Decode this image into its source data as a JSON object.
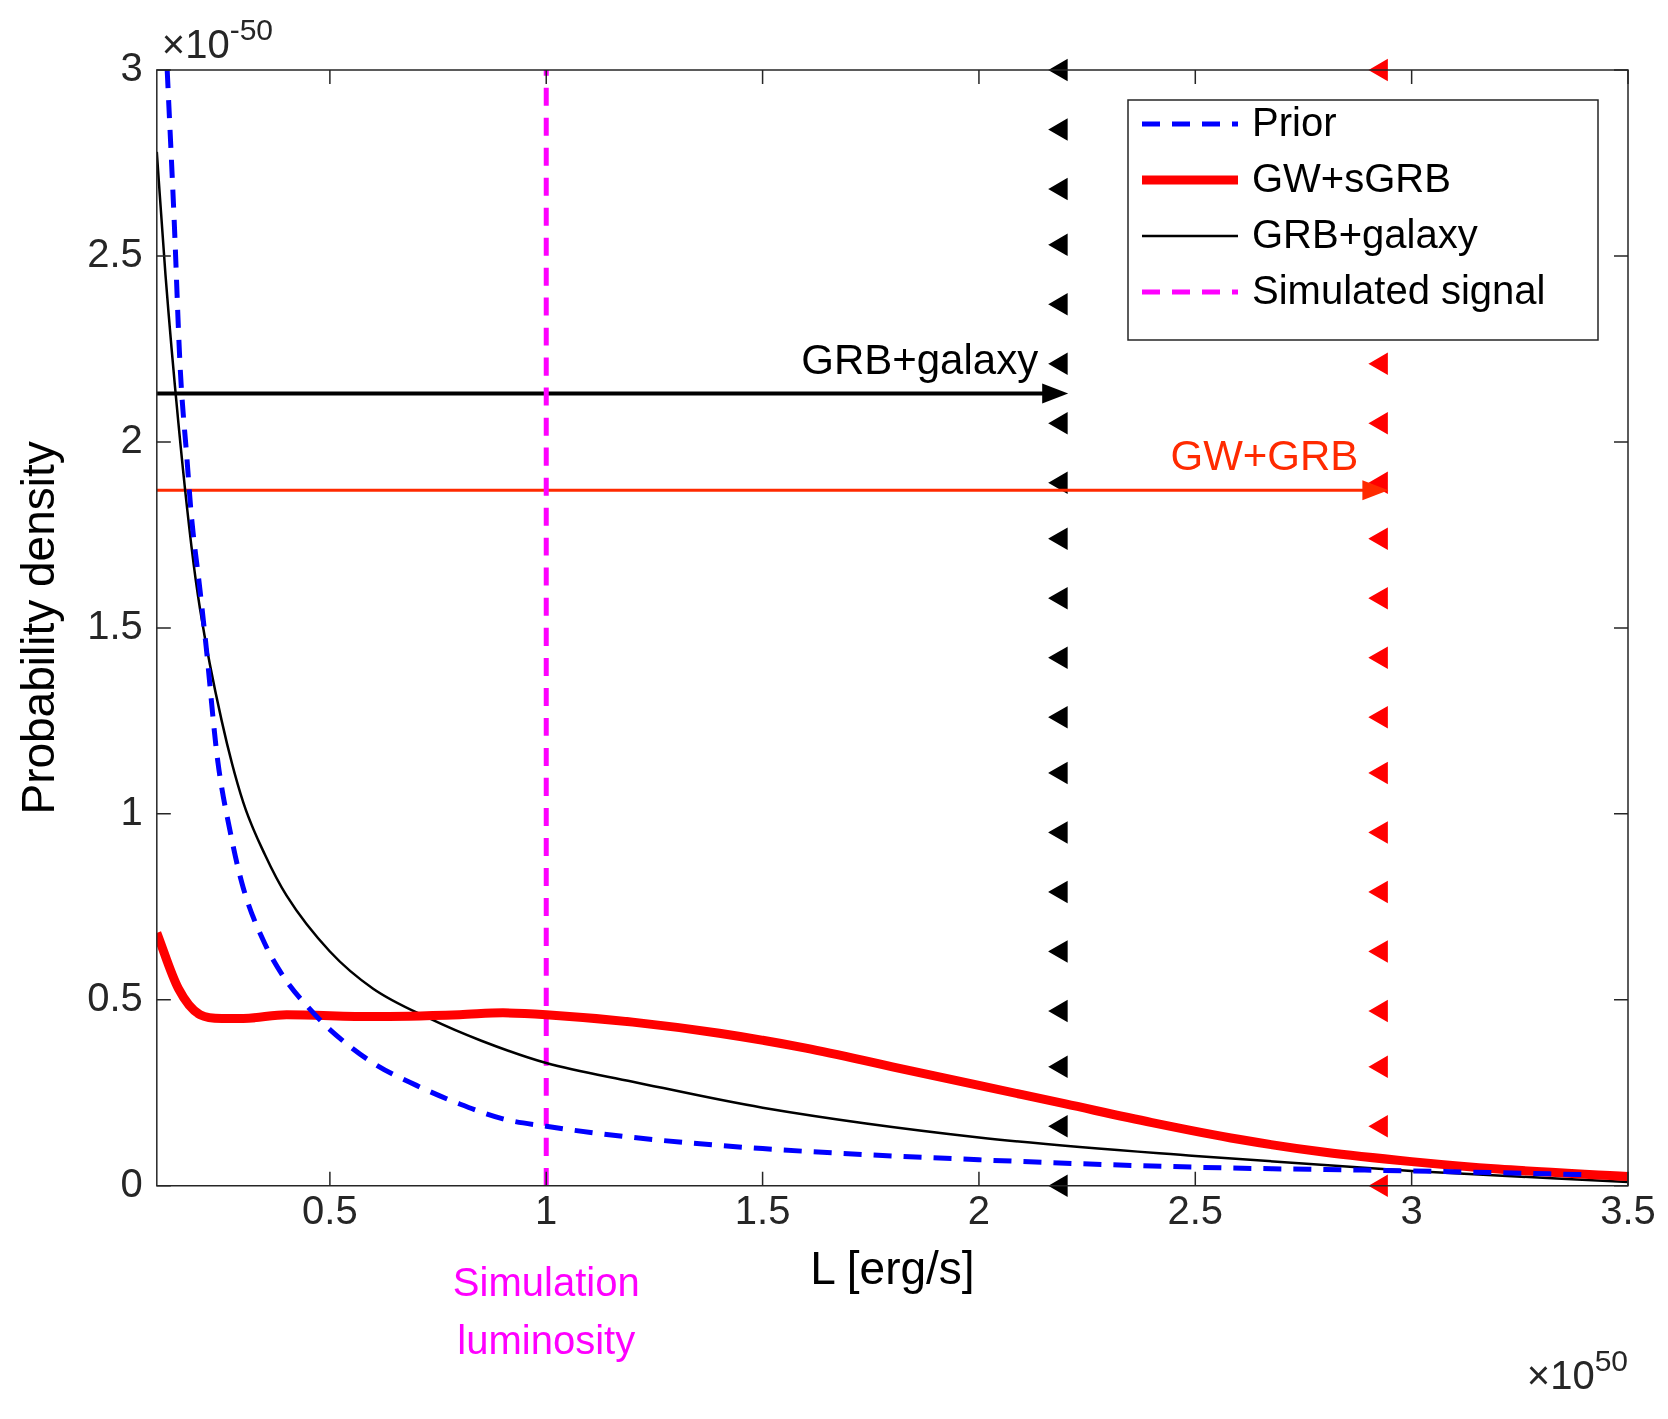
{
  "chart_data": {
    "type": "line",
    "xlabel": "L [erg/s]",
    "ylabel": "Probability density",
    "xlim": [
      0.1,
      3.5
    ],
    "xticks": [
      0.5,
      1,
      1.5,
      2,
      2.5,
      3,
      3.5
    ],
    "ylim": [
      0,
      3
    ],
    "yticks": [
      0,
      0.5,
      1,
      1.5,
      2,
      2.5,
      3
    ],
    "grid": false,
    "legend": "top right",
    "series": [
      {
        "name": "Prior",
        "color": "#0000ff",
        "line_style": "dashed",
        "x": [
          0.124,
          0.14,
          0.154,
          0.17,
          0.18,
          0.2,
          0.214,
          0.24,
          0.27,
          0.3,
          0.35,
          0.4,
          0.45,
          0.5,
          0.6,
          0.7,
          0.8,
          0.9,
          1,
          1.2,
          1.5,
          2,
          2.5,
          3,
          3.4
        ],
        "values": [
          3,
          2.6,
          2.2,
          1.95,
          1.8,
          1.6,
          1.45,
          1.15,
          0.95,
          0.8,
          0.65,
          0.55,
          0.48,
          0.42,
          0.33,
          0.27,
          0.22,
          0.18,
          0.16,
          0.13,
          0.1,
          0.07,
          0.05,
          0.04,
          0.03
        ]
      },
      {
        "name": "GW+sGRB",
        "color": "#ff0000",
        "line_style": "solid",
        "x": [
          0.1,
          0.15,
          0.2,
          0.25,
          0.3,
          0.4,
          0.6,
          0.8,
          0.9,
          1,
          1.2,
          1.4,
          1.6,
          1.8,
          2,
          2.2,
          2.4,
          2.6,
          2.8,
          3,
          3.2,
          3.5
        ],
        "values": [
          0.68,
          0.53,
          0.46,
          0.45,
          0.45,
          0.46,
          0.455,
          0.46,
          0.465,
          0.46,
          0.44,
          0.41,
          0.37,
          0.32,
          0.27,
          0.22,
          0.17,
          0.125,
          0.09,
          0.065,
          0.045,
          0.025
        ]
      },
      {
        "name": "GRB+galaxy",
        "color": "#000000",
        "line_style": "solid",
        "x": [
          0.1,
          0.12,
          0.15,
          0.18,
          0.2,
          0.25,
          0.3,
          0.35,
          0.4,
          0.5,
          0.6,
          0.73,
          0.85,
          1,
          1.2,
          1.5,
          2,
          2.5,
          3,
          3.5
        ],
        "values": [
          2.78,
          2.45,
          2.05,
          1.72,
          1.55,
          1.25,
          1.03,
          0.89,
          0.78,
          0.63,
          0.53,
          0.45,
          0.39,
          0.33,
          0.28,
          0.21,
          0.13,
          0.08,
          0.04,
          0.01
        ]
      },
      {
        "name": "Simulated signal",
        "color": "#ff00ff",
        "line_style": "dashed",
        "x": [
          1,
          1
        ],
        "values": [
          0,
          3
        ]
      },
      {
        "color": "#000000",
        "line_style": "solid",
        "x": [
          0.1,
          2.16
        ],
        "values": [
          2.13,
          2.13
        ]
      },
      {
        "color": "#ff2a00",
        "line_style": "solid",
        "x": [
          0.1,
          2.9
        ],
        "values": [
          1.87,
          1.87
        ]
      },
      {
        "type": "scatter",
        "color": "#000000",
        "marker": "triangle",
        "x": [
          2.19,
          2.19,
          2.19,
          2.19,
          2.19,
          2.19,
          2.19,
          2.19,
          2.19,
          2.19,
          2.19,
          2.19,
          2.19,
          2.19,
          2.19,
          2.19,
          2.19,
          2.19,
          2.19,
          2.19
        ],
        "values": [
          3,
          2.84,
          2.68,
          2.53,
          2.37,
          2.21,
          2.05,
          1.89,
          1.74,
          1.58,
          1.42,
          1.26,
          1.11,
          0.95,
          0.79,
          0.63,
          0.47,
          0.32,
          0.16,
          0
        ]
      },
      {
        "type": "scatter",
        "color": "#ff0000",
        "marker": "triangle",
        "x": [
          2.93,
          2.93,
          2.93,
          2.93,
          2.93,
          2.93,
          2.93,
          2.93,
          2.93,
          2.93,
          2.93,
          2.93,
          2.93,
          2.93,
          2.93,
          2.93
        ],
        "values": [
          3,
          2.21,
          2.05,
          1.89,
          1.74,
          1.58,
          1.42,
          1.26,
          1.11,
          0.95,
          0.79,
          0.63,
          0.47,
          0.32,
          0.16,
          0
        ]
      }
    ],
    "annotations": [
      "×10$^{-50}$",
      "×10$^{50}$",
      {
        "text": "GRB+galaxy",
        "x": 2.16,
        "y": 2.13
      },
      {
        "text": "GW+GRB",
        "x": 2.9,
        "y": 1.87
      },
      "Simulation luminosity"
    ]
  }
}
